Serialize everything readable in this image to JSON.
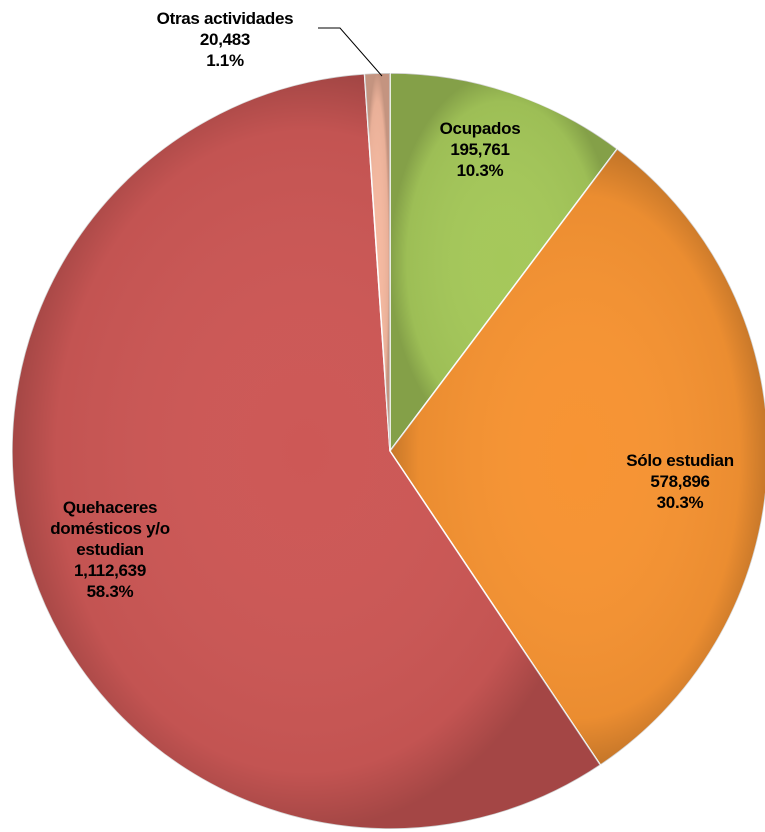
{
  "chart_data": {
    "type": "pie",
    "categories": [
      "Ocupados",
      "Sólo estudian",
      "Quehaceres domésticos y/o estudian",
      "Otras actividades"
    ],
    "values": [
      195761,
      578896,
      1112639,
      20483
    ],
    "value_labels": [
      "195,761",
      "578,896",
      "1,112,639",
      "20,483"
    ],
    "percents": [
      10.3,
      30.3,
      58.3,
      1.1
    ],
    "percent_labels": [
      "10.3%",
      "30.3%",
      "58.3%",
      "1.1%"
    ],
    "colors": [
      "#a5c85a",
      "#f79433",
      "#cd5856",
      "#f5b9a0"
    ]
  }
}
